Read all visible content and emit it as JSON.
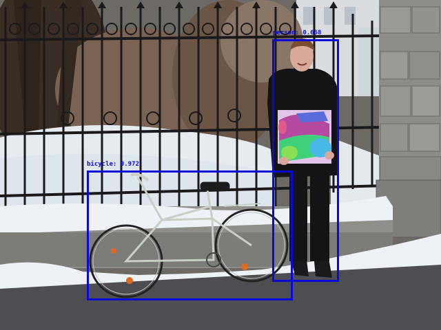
{
  "detections": [
    {
      "id": "person",
      "label": "person: 0.668",
      "class_name": "person",
      "score": 0.668
    },
    {
      "id": "bicycle",
      "label": "bicycle: 0.972",
      "class_name": "bicycle",
      "score": 0.972
    }
  ],
  "colors": {
    "box": "#0a0ad8",
    "snow": "#eef2f6",
    "asphalt": "#4e4e52",
    "fence": "#1a1a1c",
    "stone": "#8c8c88",
    "jacket": "#141416",
    "bike_frame": "#c8d0c4"
  }
}
